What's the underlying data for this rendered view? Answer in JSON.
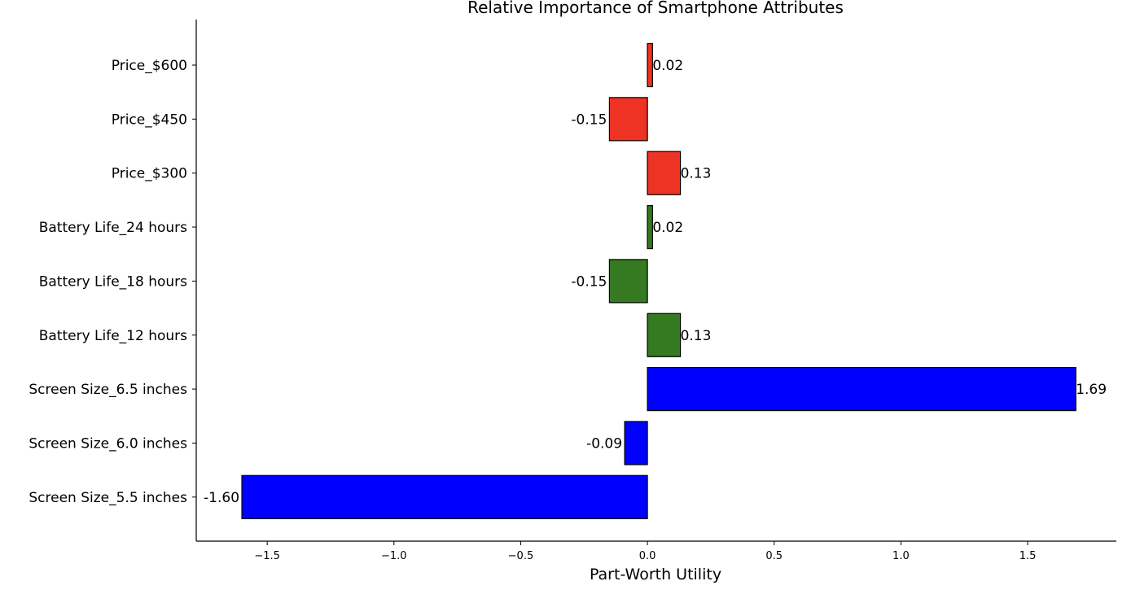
{
  "chart_data": {
    "type": "bar",
    "orientation": "horizontal",
    "title": "Relative Importance of Smartphone Attributes",
    "xlabel": "Part-Worth Utility",
    "ylabel": "",
    "xlim": [
      -1.78,
      1.85
    ],
    "xticks": [
      -1.5,
      -1.0,
      -0.5,
      0.0,
      0.5,
      1.0,
      1.5
    ],
    "xtick_labels": [
      "−1.5",
      "−1.0",
      "−0.5",
      "0.0",
      "0.5",
      "1.0",
      "1.5"
    ],
    "grid": false,
    "legend": "none",
    "categories": [
      "Price_$600",
      "Price_$450",
      "Price_$300",
      "Battery Life_24 hours",
      "Battery Life_18 hours",
      "Battery Life_12 hours",
      "Screen Size_6.5 inches",
      "Screen Size_6.0 inches",
      "Screen Size_5.5 inches"
    ],
    "values": [
      0.02,
      -0.15,
      0.13,
      0.02,
      -0.15,
      0.13,
      1.69,
      -0.09,
      -1.6
    ],
    "value_labels": [
      "0.02",
      "-0.15",
      "0.13",
      "0.02",
      "-0.15",
      "0.13",
      "1.69",
      "-0.09",
      "-1.60"
    ],
    "colors": [
      "#ee3224",
      "#ee3224",
      "#ee3224",
      "#357a20",
      "#357a20",
      "#357a20",
      "#0000ff",
      "#0000ff",
      "#0000ff"
    ],
    "category_slugs": [
      "price-600",
      "price-450",
      "price-300",
      "battery-life-24-hours",
      "battery-life-18-hours",
      "battery-life-12-hours",
      "screen-size-6-5-inches",
      "screen-size-6-0-inches",
      "screen-size-5-5-inches"
    ]
  }
}
